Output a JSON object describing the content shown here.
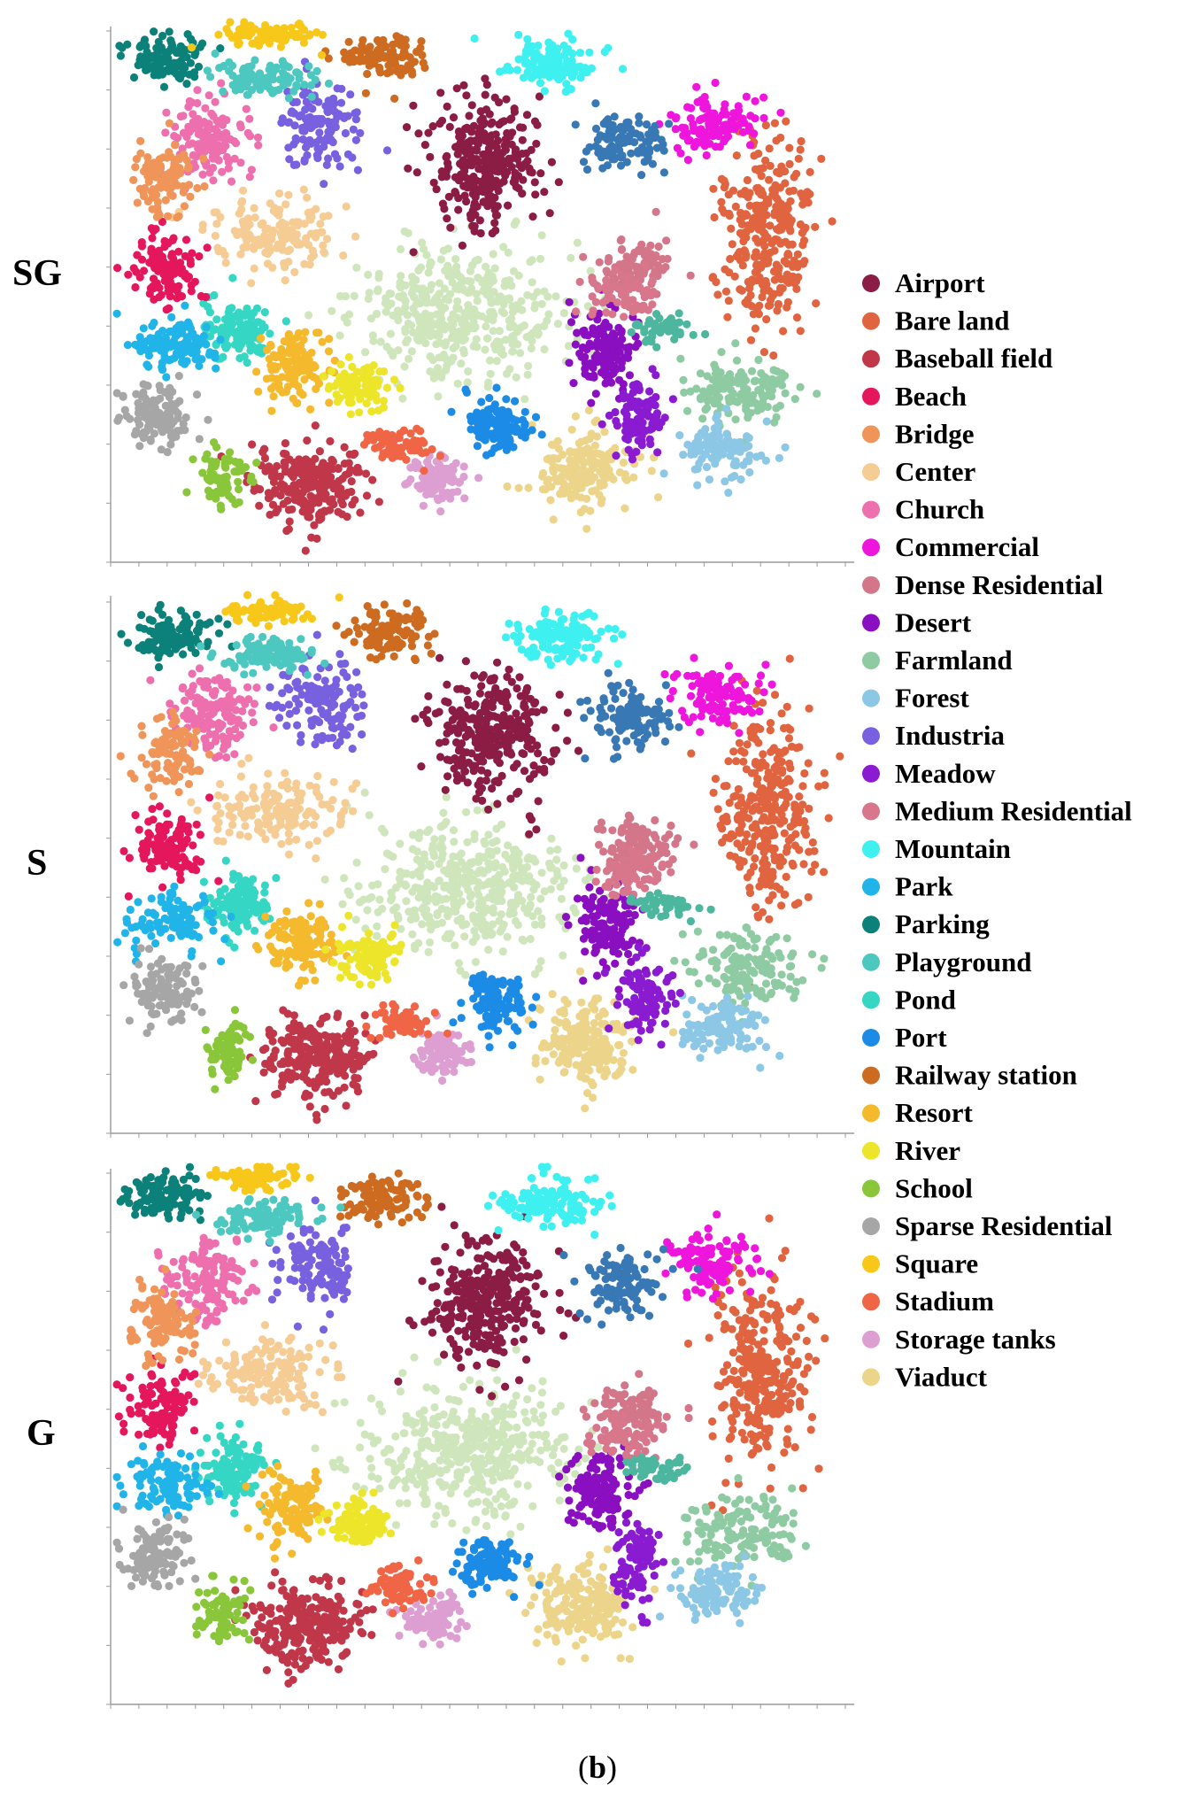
{
  "caption": {
    "open": "(",
    "letter": "b",
    "close": ")"
  },
  "chart_data": {
    "type": "scatter",
    "description_note": "",
    "panels": [
      {
        "label": "SG"
      },
      {
        "label": "S"
      },
      {
        "label": "G"
      }
    ],
    "xlim": [
      0,
      1
    ],
    "ylim": [
      0,
      1
    ],
    "grid": false,
    "legend_placement": "right",
    "series": [
      {
        "name": "Airport",
        "color": "#8b1c44",
        "center": [
          0.51,
          0.74
        ],
        "spread": [
          0.07,
          0.11
        ],
        "n": 300
      },
      {
        "name": "Bare land",
        "color": "#e0643f",
        "center": [
          0.89,
          0.6
        ],
        "spread": [
          0.06,
          0.17
        ],
        "n": 300
      },
      {
        "name": "Baseball field",
        "color": "#c0374a",
        "center": [
          0.27,
          0.13
        ],
        "spread": [
          0.07,
          0.07
        ],
        "n": 240
      },
      {
        "name": "Beach",
        "color": "#e5175c",
        "center": [
          0.07,
          0.53
        ],
        "spread": [
          0.04,
          0.06
        ],
        "n": 110
      },
      {
        "name": "Bridge",
        "color": "#f0955a",
        "center": [
          0.07,
          0.7
        ],
        "spread": [
          0.04,
          0.06
        ],
        "n": 100
      },
      {
        "name": "Center",
        "color": "#f6cc95",
        "center": [
          0.22,
          0.6
        ],
        "spread": [
          0.08,
          0.06
        ],
        "n": 150
      },
      {
        "name": "Church",
        "color": "#ee6fae",
        "center": [
          0.13,
          0.78
        ],
        "spread": [
          0.05,
          0.07
        ],
        "n": 140
      },
      {
        "name": "Commercial",
        "color": "#ee15dc",
        "center": [
          0.82,
          0.81
        ],
        "spread": [
          0.05,
          0.05
        ],
        "n": 110
      },
      {
        "name": "Dense Residential",
        "color": "#d4768a",
        "center": [
          0.71,
          0.53
        ],
        "spread": [
          0.05,
          0.05
        ],
        "n": 100
      },
      {
        "name": "Desert",
        "color": "#8a0fc0",
        "center": [
          0.67,
          0.38
        ],
        "spread": [
          0.04,
          0.07
        ],
        "n": 140
      },
      {
        "name": "Farmland",
        "color": "#8fcba2",
        "center": [
          0.86,
          0.3
        ],
        "spread": [
          0.07,
          0.06
        ],
        "n": 140
      },
      {
        "name": "Forest",
        "color": "#8cc7e6",
        "center": [
          0.83,
          0.19
        ],
        "spread": [
          0.05,
          0.05
        ],
        "n": 110
      },
      {
        "name": "Industria",
        "color": "#7761df",
        "center": [
          0.28,
          0.8
        ],
        "spread": [
          0.05,
          0.07
        ],
        "n": 130
      },
      {
        "name": "Meadow",
        "color": "#8a1bd1",
        "center": [
          0.72,
          0.25
        ],
        "spread": [
          0.03,
          0.07
        ],
        "n": 100
      },
      {
        "name": "Medium Residential",
        "color": "#d8768b",
        "center": [
          0.7,
          0.48
        ],
        "spread": [
          0.04,
          0.04
        ],
        "n": 60
      },
      {
        "name": "Mountain",
        "color": "#3ff0f0",
        "center": [
          0.6,
          0.92
        ],
        "spread": [
          0.06,
          0.04
        ],
        "n": 120
      },
      {
        "name": "Park",
        "color": "#21b4e8",
        "center": [
          0.08,
          0.39
        ],
        "spread": [
          0.05,
          0.05
        ],
        "n": 110
      },
      {
        "name": "Parking",
        "color": "#0c817a",
        "center": [
          0.07,
          0.93
        ],
        "spread": [
          0.05,
          0.04
        ],
        "n": 110
      },
      {
        "name": "Playground",
        "color": "#4cc8c0",
        "center": [
          0.21,
          0.89
        ],
        "spread": [
          0.06,
          0.03
        ],
        "n": 100
      },
      {
        "name": "Pond",
        "color": "#35d6c4",
        "center": [
          0.17,
          0.42
        ],
        "spread": [
          0.04,
          0.05
        ],
        "n": 120
      },
      {
        "name": "Port",
        "color": "#1b8be6",
        "center": [
          0.52,
          0.24
        ],
        "spread": [
          0.04,
          0.05
        ],
        "n": 120
      },
      {
        "name": "Railway station",
        "color": "#cd6b21",
        "center": [
          0.37,
          0.93
        ],
        "spread": [
          0.05,
          0.04
        ],
        "n": 110
      },
      {
        "name": "Resort",
        "color": "#f4b92c",
        "center": [
          0.25,
          0.35
        ],
        "spread": [
          0.04,
          0.06
        ],
        "n": 120
      },
      {
        "name": "River",
        "color": "#ede52a",
        "center": [
          0.34,
          0.32
        ],
        "spread": [
          0.04,
          0.04
        ],
        "n": 100
      },
      {
        "name": "School",
        "color": "#89c63a",
        "center": [
          0.15,
          0.15
        ],
        "spread": [
          0.03,
          0.05
        ],
        "n": 70
      },
      {
        "name": "Sparse Residential",
        "color": "#a6a6a6",
        "center": [
          0.06,
          0.26
        ],
        "spread": [
          0.04,
          0.06
        ],
        "n": 110
      },
      {
        "name": "Square",
        "color": "#f7c81a",
        "center": [
          0.21,
          0.97
        ],
        "spread": [
          0.06,
          0.02
        ],
        "n": 80
      },
      {
        "name": "Stadium",
        "color": "#ef6545",
        "center": [
          0.39,
          0.2
        ],
        "spread": [
          0.04,
          0.03
        ],
        "n": 70
      },
      {
        "name": "Storage tanks",
        "color": "#dd9fd2",
        "center": [
          0.44,
          0.14
        ],
        "spread": [
          0.04,
          0.04
        ],
        "n": 90
      },
      {
        "name": "Viaduct",
        "color": "#ecd58a",
        "center": [
          0.64,
          0.16
        ],
        "spread": [
          0.06,
          0.07
        ],
        "n": 200
      }
    ],
    "extra_clusters": [
      {
        "color": "#cfe6bd",
        "center": [
          0.48,
          0.45
        ],
        "spread": [
          0.13,
          0.11
        ],
        "n": 420
      },
      {
        "color": "#3878b4",
        "center": [
          0.7,
          0.77
        ],
        "spread": [
          0.05,
          0.05
        ],
        "n": 110
      },
      {
        "color": "#4cb79e",
        "center": [
          0.75,
          0.42
        ],
        "spread": [
          0.04,
          0.02
        ],
        "n": 45
      }
    ]
  }
}
